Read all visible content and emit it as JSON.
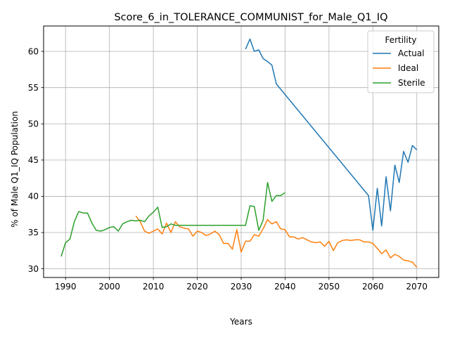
{
  "chart_data": {
    "type": "line",
    "title": "Score_6_in_TOLERANCE_COMMUNIST_for_Male_Q1_IQ",
    "xlabel": "Years",
    "ylabel": "% of Male Q1_IQ Population",
    "xlim": [
      1985,
      2075
    ],
    "ylim": [
      28.8,
      63.5
    ],
    "xticks": [
      1990,
      2000,
      2010,
      2020,
      2030,
      2040,
      2050,
      2060,
      2070
    ],
    "yticks": [
      30,
      35,
      40,
      45,
      50,
      55,
      60
    ],
    "grid": true,
    "legend": {
      "title": "Fertility",
      "placement": "top-right"
    },
    "series": [
      {
        "name": "Actual",
        "color": "#1f77b4",
        "points": [
          [
            2031,
            60.3
          ],
          [
            2032,
            61.7
          ],
          [
            2033,
            60.0
          ],
          [
            2034,
            60.2
          ],
          [
            2035,
            59.0
          ],
          [
            2036,
            58.6
          ],
          [
            2037,
            58.1
          ],
          [
            2038,
            55.5
          ],
          [
            2059,
            40.1
          ],
          [
            2060,
            35.3
          ],
          [
            2061,
            41.1
          ],
          [
            2062,
            35.9
          ],
          [
            2063,
            42.7
          ],
          [
            2064,
            38.0
          ],
          [
            2065,
            44.3
          ],
          [
            2066,
            41.9
          ],
          [
            2067,
            46.2
          ],
          [
            2068,
            44.7
          ],
          [
            2069,
            47.0
          ],
          [
            2070,
            46.4
          ]
        ]
      },
      {
        "name": "Ideal",
        "color": "#ff7f0e",
        "points": [
          [
            2006,
            37.3
          ],
          [
            2007,
            36.5
          ],
          [
            2008,
            35.2
          ],
          [
            2009,
            34.9
          ],
          [
            2010,
            35.2
          ],
          [
            2011,
            35.5
          ],
          [
            2012,
            34.8
          ],
          [
            2013,
            36.3
          ],
          [
            2014,
            35.0
          ],
          [
            2015,
            36.5
          ],
          [
            2016,
            35.8
          ],
          [
            2017,
            35.6
          ],
          [
            2018,
            35.5
          ],
          [
            2019,
            34.5
          ],
          [
            2020,
            35.2
          ],
          [
            2021,
            35.0
          ],
          [
            2022,
            34.6
          ],
          [
            2023,
            34.8
          ],
          [
            2024,
            35.2
          ],
          [
            2025,
            34.7
          ],
          [
            2026,
            33.5
          ],
          [
            2027,
            33.5
          ],
          [
            2028,
            32.7
          ],
          [
            2029,
            35.4
          ],
          [
            2030,
            32.3
          ],
          [
            2031,
            33.8
          ],
          [
            2032,
            33.8
          ],
          [
            2033,
            34.7
          ],
          [
            2034,
            34.5
          ],
          [
            2035,
            35.5
          ],
          [
            2036,
            36.8
          ],
          [
            2037,
            36.2
          ],
          [
            2038,
            36.5
          ],
          [
            2039,
            35.5
          ],
          [
            2040,
            35.4
          ],
          [
            2041,
            34.4
          ],
          [
            2042,
            34.4
          ],
          [
            2043,
            34.1
          ],
          [
            2044,
            34.3
          ],
          [
            2045,
            34.0
          ],
          [
            2046,
            33.7
          ],
          [
            2047,
            33.6
          ],
          [
            2048,
            33.7
          ],
          [
            2049,
            33.1
          ],
          [
            2050,
            33.8
          ],
          [
            2051,
            32.5
          ],
          [
            2052,
            33.6
          ],
          [
            2053,
            33.9
          ],
          [
            2054,
            34.0
          ],
          [
            2055,
            33.9
          ],
          [
            2056,
            34.0
          ],
          [
            2057,
            34.0
          ],
          [
            2058,
            33.7
          ],
          [
            2059,
            33.7
          ],
          [
            2060,
            33.5
          ],
          [
            2061,
            32.8
          ],
          [
            2062,
            32.1
          ],
          [
            2063,
            32.6
          ],
          [
            2064,
            31.5
          ],
          [
            2065,
            32.0
          ],
          [
            2066,
            31.7
          ],
          [
            2067,
            31.2
          ],
          [
            2068,
            31.1
          ],
          [
            2069,
            30.9
          ],
          [
            2070,
            30.2
          ]
        ]
      },
      {
        "name": "Sterile",
        "color": "#2ca02c",
        "points": [
          [
            1989,
            31.7
          ],
          [
            1990,
            33.6
          ],
          [
            1991,
            34.1
          ],
          [
            1992,
            36.5
          ],
          [
            1993,
            37.9
          ],
          [
            1994,
            37.7
          ],
          [
            1995,
            37.7
          ],
          [
            1996,
            36.3
          ],
          [
            1997,
            35.3
          ],
          [
            1998,
            35.2
          ],
          [
            1999,
            35.4
          ],
          [
            2000,
            35.7
          ],
          [
            2001,
            35.8
          ],
          [
            2002,
            35.2
          ],
          [
            2003,
            36.2
          ],
          [
            2004,
            36.5
          ],
          [
            2005,
            36.7
          ],
          [
            2006,
            36.6
          ],
          [
            2007,
            36.7
          ],
          [
            2008,
            36.5
          ],
          [
            2009,
            37.3
          ],
          [
            2010,
            37.8
          ],
          [
            2011,
            38.5
          ],
          [
            2012,
            35.7
          ],
          [
            2013,
            35.8
          ],
          [
            2014,
            36.2
          ],
          [
            2015,
            36.0
          ],
          [
            2016,
            36.0
          ],
          [
            2017,
            36.0
          ],
          [
            2018,
            36.0
          ],
          [
            2019,
            36.0
          ],
          [
            2020,
            36.0
          ],
          [
            2021,
            36.0
          ],
          [
            2022,
            36.0
          ],
          [
            2023,
            36.0
          ],
          [
            2024,
            36.0
          ],
          [
            2025,
            36.0
          ],
          [
            2026,
            36.0
          ],
          [
            2027,
            36.0
          ],
          [
            2028,
            36.0
          ],
          [
            2029,
            36.0
          ],
          [
            2030,
            36.0
          ],
          [
            2031,
            36.0
          ],
          [
            2032,
            38.7
          ],
          [
            2033,
            38.6
          ],
          [
            2034,
            35.3
          ],
          [
            2035,
            36.7
          ],
          [
            2036,
            41.9
          ],
          [
            2037,
            39.3
          ],
          [
            2038,
            40.1
          ],
          [
            2039,
            40.1
          ],
          [
            2040,
            40.5
          ]
        ]
      }
    ]
  }
}
